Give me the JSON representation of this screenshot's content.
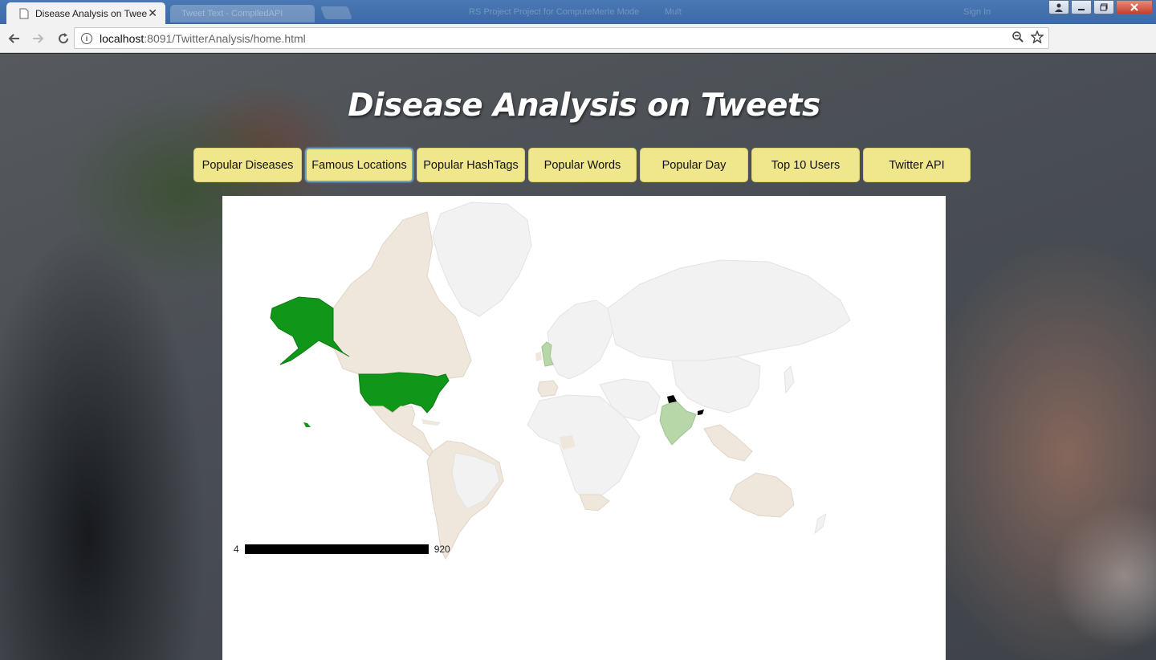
{
  "browser": {
    "active_tab_title": "Disease Analysis on Twee",
    "inactive_tab_title": "Tweet Text - CompiledAPI",
    "url_host": "localhost",
    "url_rest": ":8091/TwitterAnalysis/home.html",
    "blurred_titlebar_text": "RS Project Project for ComputeMerIe Mode",
    "blurred_titlebar_text2": "Mult",
    "blurred_titlebar_text3": "Sign In"
  },
  "page": {
    "title": "Disease Analysis on Tweets",
    "nav_buttons": [
      "Popular Diseases",
      "Famous Locations",
      "Popular HashTags",
      "Popular Words",
      "Popular Day",
      "Top 10 Users",
      "Twitter API"
    ],
    "active_button": "Famous Locations"
  },
  "chart_data": {
    "type": "geo-choropleth",
    "color_axis": {
      "min": 4,
      "max": 920,
      "min_label": "4",
      "max_label": "920",
      "min_color": "#d6e9c6",
      "max_color": "#000000"
    },
    "highlighted_regions": [
      {
        "region": "United States",
        "level": "high"
      },
      {
        "region": "India",
        "level": "low"
      },
      {
        "region": "United Kingdom",
        "level": "low"
      },
      {
        "region": "Bhutan / Nepal",
        "level": "very-high"
      }
    ],
    "colors": {
      "no_data": "#f2f2f2",
      "region_tint": "#efe6dc",
      "us_green": "#109618",
      "india_green": "#b7d7a8"
    }
  }
}
